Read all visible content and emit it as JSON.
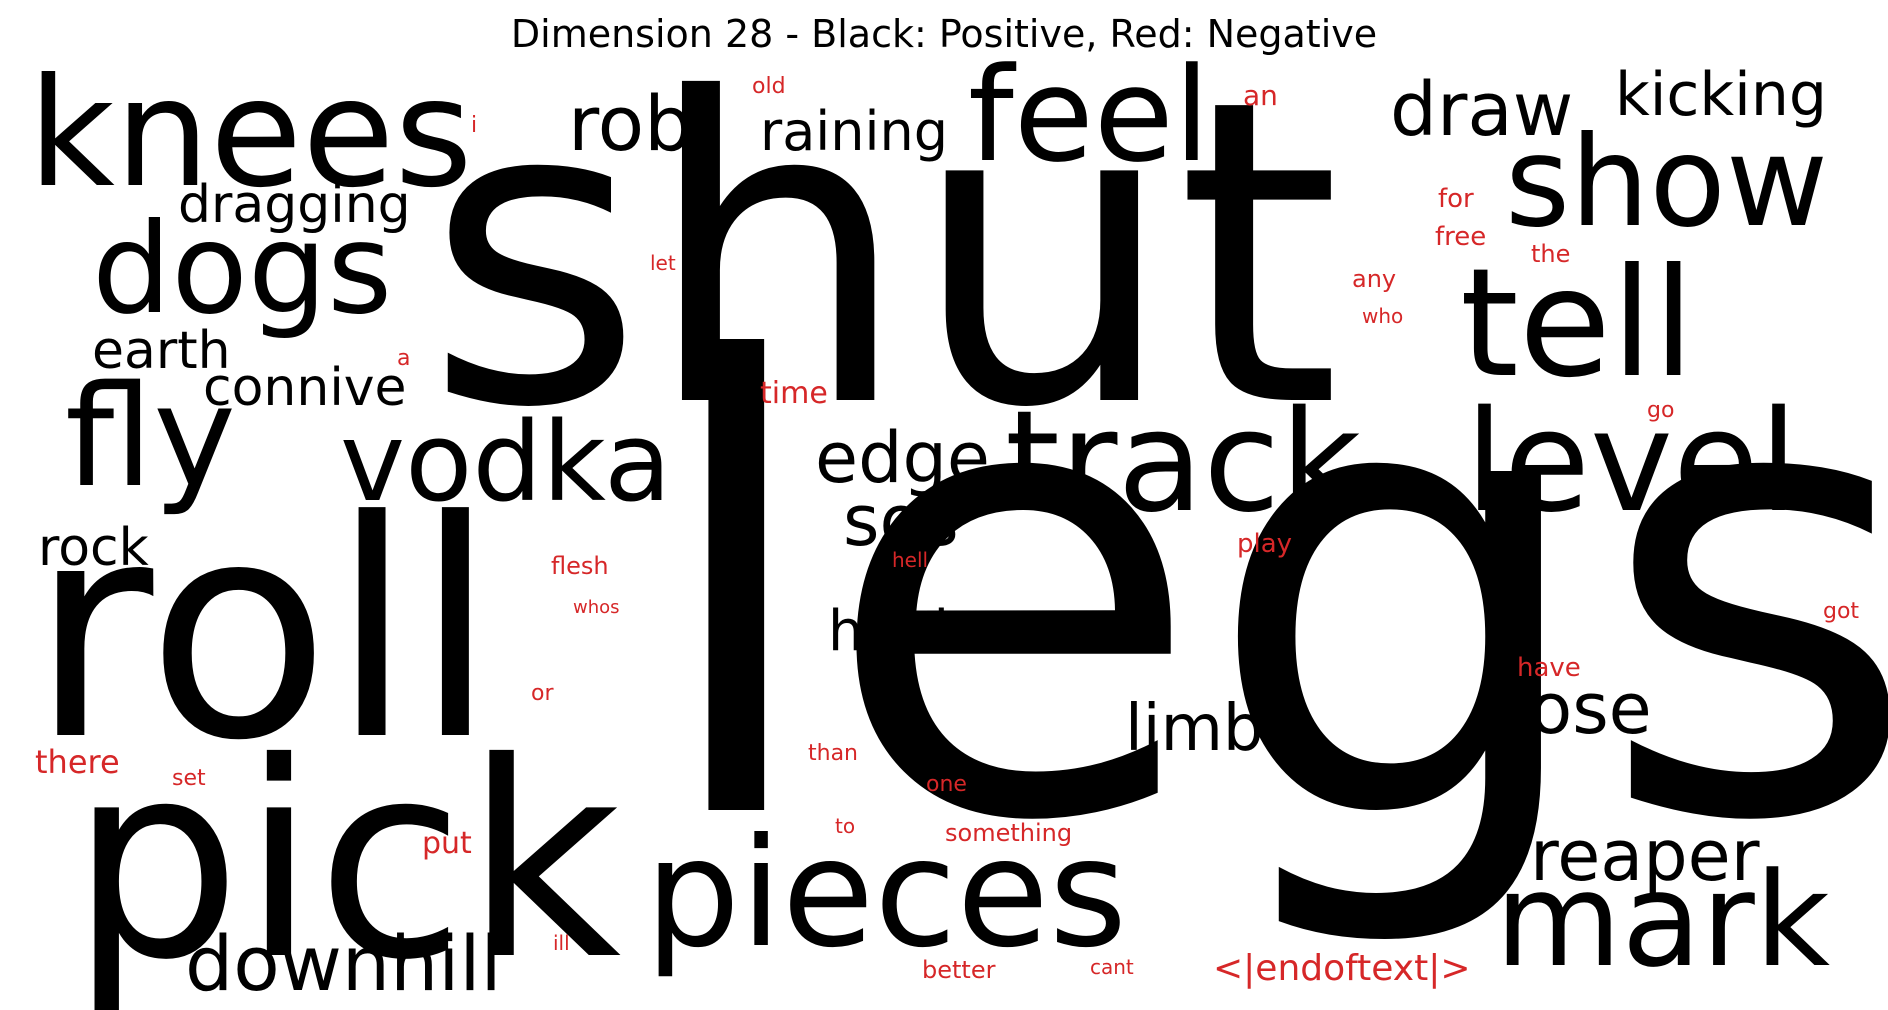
{
  "title": "Dimension 28 - Black: Positive, Red: Negative",
  "colors": {
    "positive": "#000000",
    "negative": "#d62728"
  },
  "positive_words": [
    "shut",
    "legs",
    "roll",
    "pick",
    "pieces",
    "knees",
    "feel",
    "show",
    "tell",
    "dogs",
    "fly",
    "vodka",
    "track",
    "level",
    "mark",
    "downhill",
    "rob",
    "raining",
    "draw",
    "kicking",
    "dragging",
    "earth",
    "connive",
    "edge",
    "sos",
    "rock",
    "hold",
    "limb",
    "nose",
    "reaper"
  ],
  "negative_words": [
    "old",
    "an",
    "i",
    "for",
    "free",
    "the",
    "let",
    "any",
    "who",
    "a",
    "time",
    "go",
    "flesh",
    "hell",
    "play",
    "whos",
    "got",
    "or",
    "have",
    "there",
    "set",
    "than",
    "one",
    "to",
    "something",
    "put",
    "ill",
    "better",
    "cant",
    "<|endoftext|>"
  ]
}
